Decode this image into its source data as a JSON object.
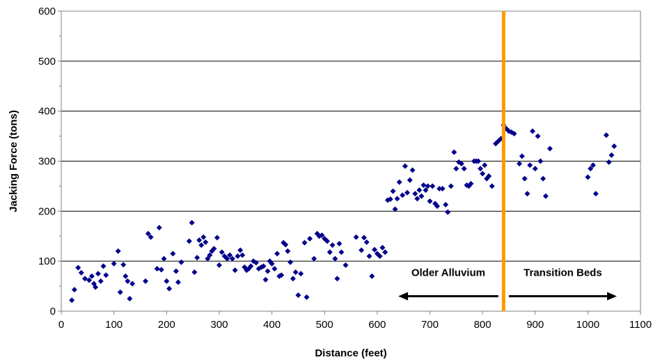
{
  "chart_data": {
    "type": "scatter",
    "title": "",
    "xlabel": "Distance (feet)",
    "ylabel": "Jacking Force (tons)",
    "xlim": [
      0,
      1100
    ],
    "ylim": [
      0,
      600
    ],
    "xticks": [
      "0",
      "100",
      "200",
      "300",
      "400",
      "500",
      "600",
      "700",
      "800",
      "900",
      "1000",
      "1100"
    ],
    "yticks": [
      "0",
      "100",
      "200",
      "300",
      "400",
      "500",
      "600"
    ],
    "grid": "horizontal",
    "legend": "none",
    "marker_color": "#00008B",
    "series": [
      {
        "points": [
          [
            20,
            22
          ],
          [
            25,
            43
          ],
          [
            32,
            87
          ],
          [
            38,
            77
          ],
          [
            45,
            65
          ],
          [
            53,
            62
          ],
          [
            58,
            70
          ],
          [
            62,
            55
          ],
          [
            65,
            48
          ],
          [
            70,
            75
          ],
          [
            75,
            60
          ],
          [
            80,
            90
          ],
          [
            85,
            72
          ],
          [
            100,
            95
          ],
          [
            108,
            120
          ],
          [
            112,
            38
          ],
          [
            118,
            93
          ],
          [
            122,
            70
          ],
          [
            126,
            60
          ],
          [
            130,
            25
          ],
          [
            135,
            55
          ],
          [
            160,
            60
          ],
          [
            165,
            155
          ],
          [
            170,
            148
          ],
          [
            182,
            85
          ],
          [
            186,
            167
          ],
          [
            190,
            83
          ],
          [
            195,
            105
          ],
          [
            200,
            60
          ],
          [
            205,
            45
          ],
          [
            212,
            115
          ],
          [
            218,
            80
          ],
          [
            222,
            58
          ],
          [
            228,
            98
          ],
          [
            243,
            140
          ],
          [
            248,
            177
          ],
          [
            253,
            78
          ],
          [
            258,
            107
          ],
          [
            262,
            142
          ],
          [
            266,
            132
          ],
          [
            270,
            148
          ],
          [
            274,
            138
          ],
          [
            278,
            105
          ],
          [
            282,
            112
          ],
          [
            286,
            120
          ],
          [
            290,
            125
          ],
          [
            296,
            147
          ],
          [
            300,
            92
          ],
          [
            305,
            118
          ],
          [
            310,
            110
          ],
          [
            315,
            105
          ],
          [
            320,
            112
          ],
          [
            325,
            105
          ],
          [
            330,
            82
          ],
          [
            335,
            110
          ],
          [
            340,
            122
          ],
          [
            344,
            112
          ],
          [
            348,
            88
          ],
          [
            352,
            82
          ],
          [
            356,
            85
          ],
          [
            360,
            90
          ],
          [
            365,
            100
          ],
          [
            370,
            97
          ],
          [
            375,
            85
          ],
          [
            380,
            88
          ],
          [
            384,
            90
          ],
          [
            388,
            63
          ],
          [
            392,
            80
          ],
          [
            396,
            100
          ],
          [
            400,
            95
          ],
          [
            405,
            85
          ],
          [
            410,
            115
          ],
          [
            414,
            70
          ],
          [
            418,
            72
          ],
          [
            422,
            137
          ],
          [
            426,
            133
          ],
          [
            430,
            120
          ],
          [
            435,
            98
          ],
          [
            440,
            65
          ],
          [
            445,
            78
          ],
          [
            450,
            32
          ],
          [
            455,
            75
          ],
          [
            462,
            137
          ],
          [
            466,
            28
          ],
          [
            472,
            145
          ],
          [
            480,
            105
          ],
          [
            486,
            155
          ],
          [
            490,
            150
          ],
          [
            495,
            152
          ],
          [
            500,
            145
          ],
          [
            505,
            140
          ],
          [
            510,
            118
          ],
          [
            515,
            132
          ],
          [
            520,
            105
          ],
          [
            524,
            65
          ],
          [
            528,
            135
          ],
          [
            532,
            118
          ],
          [
            540,
            92
          ],
          [
            560,
            148
          ],
          [
            570,
            122
          ],
          [
            575,
            147
          ],
          [
            580,
            138
          ],
          [
            585,
            110
          ],
          [
            590,
            70
          ],
          [
            595,
            123
          ],
          [
            600,
            115
          ],
          [
            605,
            110
          ],
          [
            610,
            127
          ],
          [
            615,
            118
          ],
          [
            620,
            222
          ],
          [
            625,
            224
          ],
          [
            630,
            240
          ],
          [
            634,
            204
          ],
          [
            638,
            225
          ],
          [
            642,
            258
          ],
          [
            648,
            232
          ],
          [
            653,
            290
          ],
          [
            657,
            237
          ],
          [
            662,
            262
          ],
          [
            667,
            282
          ],
          [
            672,
            235
          ],
          [
            676,
            225
          ],
          [
            680,
            242
          ],
          [
            684,
            230
          ],
          [
            688,
            252
          ],
          [
            692,
            242
          ],
          [
            696,
            250
          ],
          [
            700,
            220
          ],
          [
            705,
            250
          ],
          [
            710,
            215
          ],
          [
            714,
            210
          ],
          [
            718,
            245
          ],
          [
            724,
            245
          ],
          [
            730,
            213
          ],
          [
            734,
            198
          ],
          [
            740,
            250
          ],
          [
            746,
            318
          ],
          [
            750,
            285
          ],
          [
            755,
            298
          ],
          [
            760,
            295
          ],
          [
            765,
            285
          ],
          [
            770,
            252
          ],
          [
            774,
            250
          ],
          [
            778,
            255
          ],
          [
            784,
            300
          ],
          [
            788,
            300
          ],
          [
            792,
            300
          ],
          [
            796,
            285
          ],
          [
            800,
            275
          ],
          [
            804,
            292
          ],
          [
            808,
            265
          ],
          [
            812,
            270
          ],
          [
            818,
            250
          ],
          [
            825,
            335
          ],
          [
            830,
            340
          ],
          [
            835,
            345
          ],
          [
            840,
            372
          ],
          [
            845,
            365
          ],
          [
            850,
            360
          ],
          [
            855,
            358
          ],
          [
            860,
            355
          ],
          [
            870,
            295
          ],
          [
            875,
            310
          ],
          [
            880,
            265
          ],
          [
            885,
            235
          ],
          [
            890,
            292
          ],
          [
            895,
            360
          ],
          [
            900,
            285
          ],
          [
            905,
            350
          ],
          [
            910,
            300
          ],
          [
            915,
            265
          ],
          [
            920,
            230
          ],
          [
            928,
            325
          ],
          [
            1000,
            268
          ],
          [
            1005,
            285
          ],
          [
            1010,
            292
          ],
          [
            1015,
            235
          ],
          [
            1035,
            352
          ],
          [
            1040,
            298
          ],
          [
            1045,
            312
          ],
          [
            1050,
            330
          ]
        ]
      }
    ],
    "divider": {
      "x": 840,
      "color": "#FF9900"
    },
    "annotations": [
      {
        "text": "Older Alluvium",
        "arrow": "left",
        "arrow_from": 830,
        "arrow_to": 640,
        "y": 30
      },
      {
        "text": "Transition Beds",
        "arrow": "right",
        "arrow_from": 850,
        "arrow_to": 1055,
        "y": 30
      }
    ]
  }
}
